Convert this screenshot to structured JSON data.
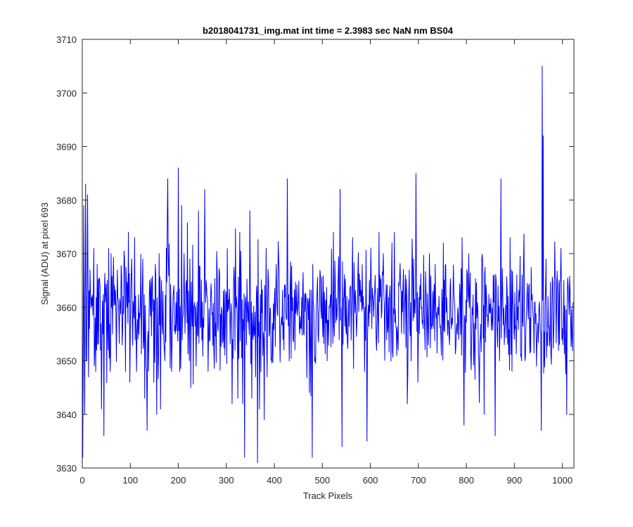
{
  "chart_data": {
    "type": "line",
    "title": "b2018041731_img.mat int time = 2.3983 sec  NaN nm BS04",
    "xlabel": "Track Pixels",
    "ylabel": "Signal (ADU) at pixel 693",
    "xlim": [
      0,
      1024
    ],
    "ylim": [
      3630,
      3710
    ],
    "xticks": [
      0,
      100,
      200,
      300,
      400,
      500,
      600,
      700,
      800,
      900,
      1000
    ],
    "yticks": [
      3630,
      3640,
      3650,
      3660,
      3670,
      3680,
      3690,
      3700,
      3710
    ],
    "grid": false,
    "series": [
      {
        "color": "#0000ff",
        "baseline": 3659,
        "noise_amplitude": 5.5,
        "points": [
          [
            0,
            3665
          ],
          [
            1,
            3632
          ],
          [
            3,
            3679
          ],
          [
            5,
            3640
          ],
          [
            7,
            3683
          ],
          [
            9,
            3650
          ],
          [
            11,
            3681
          ],
          [
            13,
            3647
          ],
          [
            24,
            3671
          ],
          [
            28,
            3648
          ],
          [
            31,
            3668
          ],
          [
            37,
            3664
          ],
          [
            40,
            3641
          ],
          [
            43,
            3655
          ],
          [
            45,
            3636
          ],
          [
            52,
            3665
          ],
          [
            58,
            3648
          ],
          [
            60,
            3670
          ],
          [
            63,
            3655
          ],
          [
            67,
            3664
          ],
          [
            70,
            3659
          ],
          [
            85,
            3662
          ],
          [
            88,
            3669
          ],
          [
            90,
            3648
          ],
          [
            92,
            3665
          ],
          [
            96,
            3674
          ],
          [
            99,
            3646
          ],
          [
            103,
            3669
          ],
          [
            109,
            3673
          ],
          [
            113,
            3648
          ],
          [
            118,
            3655
          ],
          [
            121,
            3661
          ],
          [
            126,
            3669
          ],
          [
            130,
            3643
          ],
          [
            133,
            3649
          ],
          [
            135,
            3637
          ],
          [
            140,
            3665
          ],
          [
            149,
            3646
          ],
          [
            152,
            3668
          ],
          [
            155,
            3640
          ],
          [
            160,
            3670
          ],
          [
            163,
            3641
          ],
          [
            168,
            3663
          ],
          [
            175,
            3671
          ],
          [
            178,
            3684
          ],
          [
            182,
            3660
          ],
          [
            186,
            3648
          ],
          [
            190,
            3663
          ],
          [
            194,
            3655
          ],
          [
            200,
            3686
          ],
          [
            203,
            3648
          ],
          [
            207,
            3679
          ],
          [
            212,
            3670
          ],
          [
            217,
            3665
          ],
          [
            224,
            3669
          ],
          [
            226,
            3645
          ],
          [
            232,
            3660
          ],
          [
            237,
            3649
          ],
          [
            242,
            3678
          ],
          [
            250,
            3661
          ],
          [
            255,
            3682
          ],
          [
            258,
            3665
          ],
          [
            263,
            3655
          ],
          [
            271,
            3659
          ],
          [
            278,
            3657
          ],
          [
            284,
            3662
          ],
          [
            290,
            3660
          ],
          [
            294,
            3663
          ],
          [
            298,
            3657
          ],
          [
            307,
            3661
          ],
          [
            313,
            3654
          ],
          [
            318,
            3652
          ],
          [
            320,
            3660
          ],
          [
            324,
            3643
          ],
          [
            328,
            3674
          ],
          [
            334,
            3642
          ],
          [
            338,
            3632
          ],
          [
            342,
            3653
          ],
          [
            346,
            3661
          ],
          [
            349,
            3678
          ],
          [
            353,
            3643
          ],
          [
            356,
            3654
          ],
          [
            361,
            3647
          ],
          [
            365,
            3631
          ],
          [
            369,
            3641
          ],
          [
            372,
            3648
          ],
          [
            376,
            3651
          ],
          [
            379,
            3639
          ],
          [
            383,
            3671
          ],
          [
            385,
            3647
          ],
          [
            396,
            3657
          ],
          [
            400,
            3661
          ],
          [
            404,
            3668
          ],
          [
            410,
            3667
          ],
          [
            414,
            3657
          ],
          [
            418,
            3654
          ],
          [
            420,
            3652
          ],
          [
            424,
            3659
          ],
          [
            427,
            3684
          ],
          [
            431,
            3650
          ],
          [
            441,
            3660
          ],
          [
            446,
            3660
          ],
          [
            450,
            3661
          ],
          [
            456,
            3656
          ],
          [
            461,
            3655
          ],
          [
            470,
            3661
          ],
          [
            475,
            3653
          ],
          [
            479,
            3632
          ],
          [
            483,
            3656
          ],
          [
            487,
            3658
          ],
          [
            491,
            3655
          ],
          [
            496,
            3666
          ],
          [
            500,
            3658
          ],
          [
            505,
            3660
          ],
          [
            510,
            3650
          ],
          [
            515,
            3660
          ],
          [
            523,
            3674
          ],
          [
            527,
            3665
          ],
          [
            533,
            3666
          ],
          [
            537,
            3682
          ],
          [
            541,
            3634
          ],
          [
            545,
            3662
          ],
          [
            551,
            3662
          ],
          [
            554,
            3657
          ],
          [
            561,
            3660
          ],
          [
            563,
            3673
          ],
          [
            570,
            3660
          ],
          [
            580,
            3661
          ],
          [
            585,
            3662
          ],
          [
            589,
            3660
          ],
          [
            593,
            3635
          ],
          [
            598,
            3665
          ],
          [
            603,
            3656
          ],
          [
            608,
            3662
          ],
          [
            612,
            3654
          ],
          [
            618,
            3674
          ],
          [
            623,
            3658
          ],
          [
            627,
            3670
          ],
          [
            632,
            3661
          ],
          [
            641,
            3664
          ],
          [
            645,
            3672
          ],
          [
            650,
            3674
          ],
          [
            655,
            3651
          ],
          [
            658,
            3652
          ],
          [
            664,
            3663
          ],
          [
            670,
            3655
          ],
          [
            673,
            3666
          ],
          [
            677,
            3642
          ],
          [
            681,
            3667
          ],
          [
            685,
            3650
          ],
          [
            690,
            3669
          ],
          [
            695,
            3685
          ],
          [
            699,
            3646
          ],
          [
            703,
            3664
          ],
          [
            708,
            3657
          ],
          [
            712,
            3659
          ],
          [
            716,
            3663
          ],
          [
            723,
            3670
          ],
          [
            727,
            3656
          ],
          [
            731,
            3656
          ],
          [
            735,
            3668
          ],
          [
            740,
            3660
          ],
          [
            748,
            3651
          ],
          [
            752,
            3672
          ],
          [
            757,
            3668
          ],
          [
            765,
            3653
          ],
          [
            770,
            3658
          ],
          [
            776,
            3660
          ],
          [
            781,
            3655
          ],
          [
            784,
            3654
          ],
          [
            791,
            3673
          ],
          [
            795,
            3638
          ],
          [
            801,
            3667
          ],
          [
            805,
            3670
          ],
          [
            811,
            3654
          ],
          [
            816,
            3657
          ],
          [
            822,
            3658
          ],
          [
            826,
            3650
          ],
          [
            832,
            3669
          ],
          [
            837,
            3640
          ],
          [
            842,
            3662
          ],
          [
            846,
            3658
          ],
          [
            850,
            3659
          ],
          [
            856,
            3666
          ],
          [
            860,
            3636
          ],
          [
            866,
            3664
          ],
          [
            872,
            3684
          ],
          [
            879,
            3653
          ],
          [
            885,
            3663
          ],
          [
            891,
            3673
          ],
          [
            894,
            3667
          ],
          [
            902,
            3656
          ],
          [
            907,
            3660
          ],
          [
            911,
            3663
          ],
          [
            915,
            3650
          ],
          [
            919,
            3668
          ],
          [
            922,
            3650
          ],
          [
            926,
            3662
          ],
          [
            933,
            3658
          ],
          [
            938,
            3660
          ],
          [
            942,
            3661
          ],
          [
            946,
            3649
          ],
          [
            949,
            3657
          ],
          [
            952,
            3661
          ],
          [
            956,
            3637
          ],
          [
            958,
            3705
          ],
          [
            960,
            3692
          ],
          [
            966,
            3669
          ],
          [
            970,
            3662
          ],
          [
            974,
            3654
          ],
          [
            978,
            3659
          ],
          [
            983,
            3659
          ],
          [
            988,
            3660
          ],
          [
            993,
            3665
          ],
          [
            997,
            3671
          ],
          [
            1000,
            3656
          ],
          [
            1003,
            3665
          ],
          [
            1006,
            3652
          ],
          [
            1009,
            3640
          ],
          [
            1013,
            3661
          ],
          [
            1017,
            3658
          ],
          [
            1020,
            3654
          ],
          [
            1024,
            3661
          ]
        ]
      }
    ]
  }
}
